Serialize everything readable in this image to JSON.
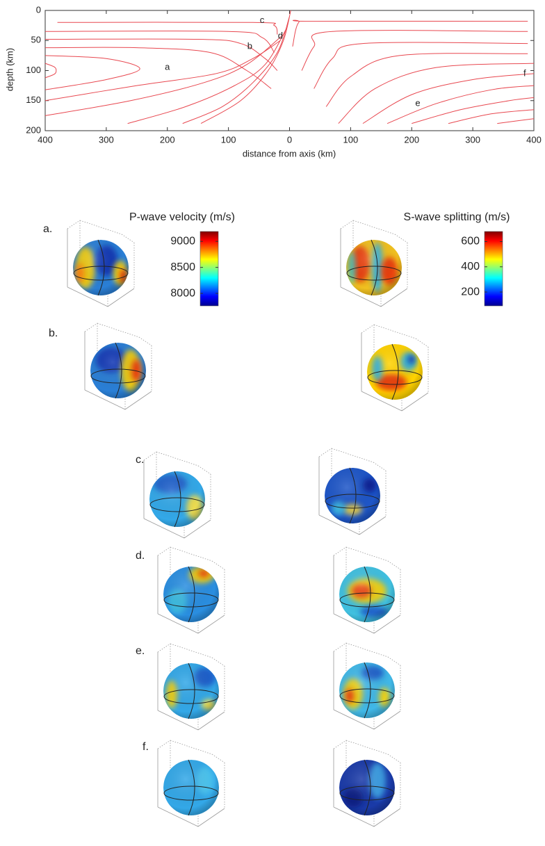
{
  "chart_data": [
    {
      "type": "line",
      "xlabel": "distance from axis (km)",
      "ylabel": "depth (km)",
      "xlim": [
        -400,
        400
      ],
      "ylim": [
        0,
        200
      ],
      "y_inverted": true,
      "color": "#e8474f",
      "xticks": [
        {
          "value": -400,
          "label": "400"
        },
        {
          "value": -300,
          "label": "300"
        },
        {
          "value": -200,
          "label": "200"
        },
        {
          "value": -100,
          "label": "100"
        },
        0,
        100,
        200,
        300,
        400
      ],
      "yticks": [
        0,
        50,
        100,
        150,
        200
      ],
      "series": [
        {
          "x": [
            -380,
            -60,
            -25,
            -20
          ],
          "values": [
            20,
            20,
            25,
            40
          ]
        },
        {
          "x": [
            -400,
            -100,
            -45,
            -25
          ],
          "values": [
            35,
            35,
            45,
            70
          ]
        },
        {
          "x": [
            -400,
            -150,
            -80,
            -40,
            -20
          ],
          "values": [
            48,
            48,
            55,
            80,
            100
          ]
        },
        {
          "x": [
            -400,
            -250,
            -130,
            -70,
            -30
          ],
          "values": [
            62,
            62,
            70,
            100,
            130
          ]
        },
        {
          "x": [
            -400,
            -300,
            -245,
            -300,
            -400
          ],
          "values": [
            75,
            80,
            97,
            115,
            132
          ]
        },
        {
          "x": [
            -400,
            -385,
            -382,
            -385,
            -400
          ],
          "values": [
            88,
            94,
            100,
            106,
            112
          ]
        },
        {
          "x": [
            -400,
            -250,
            -120,
            -60,
            -15
          ],
          "values": [
            150,
            125,
            105,
            80,
            50
          ]
        },
        {
          "x": [
            -400,
            -260,
            -140,
            -70,
            -10
          ],
          "values": [
            175,
            150,
            120,
            90,
            40
          ]
        },
        {
          "x": [
            -265,
            -170,
            -90,
            -40,
            -5
          ],
          "values": [
            188,
            160,
            125,
            90,
            30
          ]
        },
        {
          "x": [
            -175,
            -110,
            -60,
            -20,
            0
          ],
          "values": [
            188,
            160,
            120,
            70,
            10
          ]
        },
        {
          "x": [
            -145,
            -80,
            -35,
            -10,
            2
          ],
          "values": [
            188,
            150,
            100,
            50,
            0
          ]
        },
        {
          "x": [
            5,
            15,
            40,
            390
          ],
          "values": [
            60,
            20,
            18,
            18
          ]
        },
        {
          "x": [
            20,
            40,
            70,
            390
          ],
          "values": [
            100,
            60,
            35,
            35
          ]
        },
        {
          "x": [
            40,
            70,
            120,
            390
          ],
          "values": [
            130,
            80,
            55,
            55
          ]
        },
        {
          "x": [
            60,
            100,
            180,
            390
          ],
          "values": [
            160,
            110,
            75,
            72
          ]
        },
        {
          "x": [
            80,
            140,
            240,
            400
          ],
          "values": [
            188,
            130,
            95,
            88
          ]
        },
        {
          "x": [
            120,
            200,
            300,
            400
          ],
          "values": [
            188,
            140,
            115,
            105
          ]
        },
        {
          "x": [
            160,
            240,
            330,
            400
          ],
          "values": [
            188,
            155,
            132,
            125
          ]
        },
        {
          "x": [
            200,
            280,
            360,
            400
          ],
          "values": [
            188,
            165,
            150,
            145
          ]
        },
        {
          "x": [
            260,
            330,
            400
          ],
          "values": [
            188,
            172,
            165
          ]
        },
        {
          "x": [
            340,
            400
          ],
          "values": [
            188,
            180
          ]
        }
      ],
      "annotations": [
        {
          "text": "a",
          "x": -200,
          "y": 95
        },
        {
          "text": "b",
          "x": -65,
          "y": 60
        },
        {
          "text": "c",
          "x": -45,
          "y": 17
        },
        {
          "text": "d",
          "x": -15,
          "y": 43
        },
        {
          "text": "e",
          "x": 210,
          "y": 155
        },
        {
          "text": "f",
          "x": 385,
          "y": 105
        }
      ]
    },
    {
      "type": "colorbar",
      "title": "P-wave velocity (m/s)",
      "colormap": "jet",
      "ylim": [
        7760,
        9190
      ],
      "yticks": [
        8000,
        8500,
        9000
      ]
    },
    {
      "type": "colorbar",
      "title": "S-wave splitting (m/s)",
      "colormap": "jet",
      "ylim": [
        90,
        680
      ],
      "yticks": [
        200,
        400,
        600
      ]
    }
  ],
  "panel_labels": [
    "a.",
    "b.",
    "c.",
    "d.",
    "e.",
    "f."
  ]
}
